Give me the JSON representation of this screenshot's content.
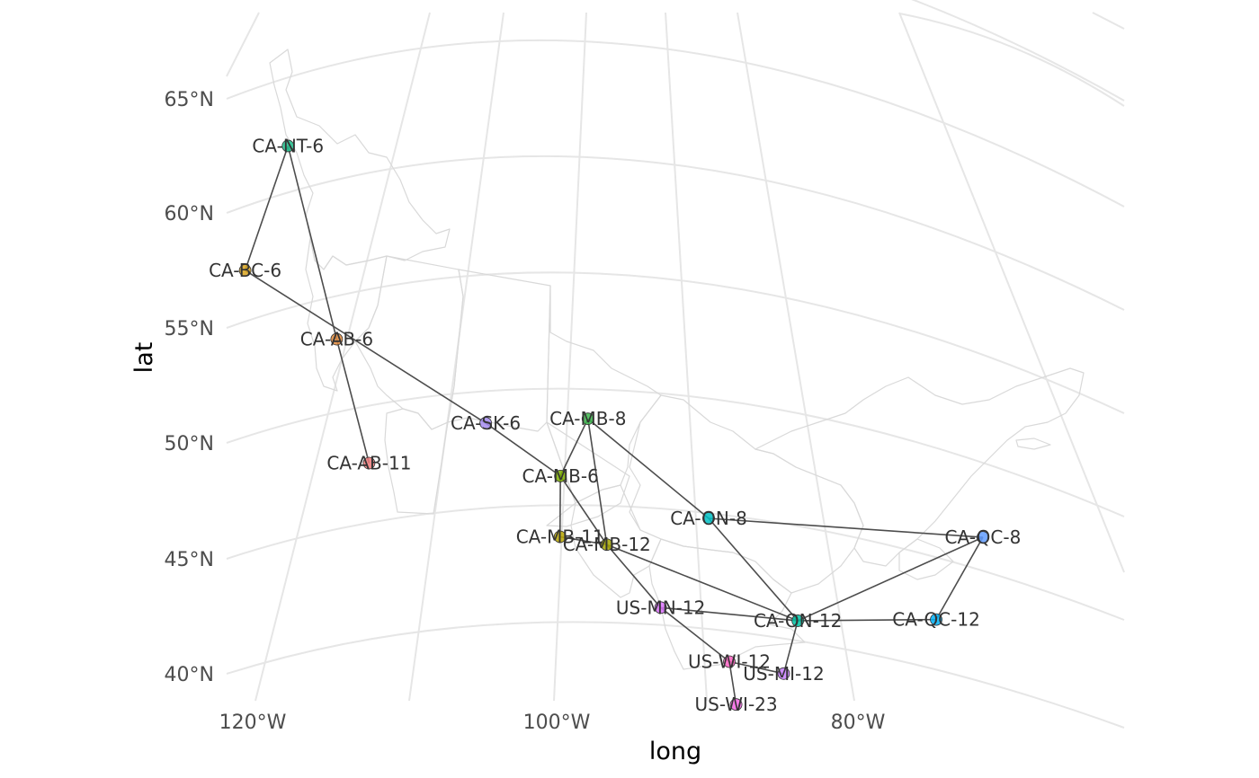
{
  "chart_data": {
    "type": "map-network",
    "title": "",
    "xlabel": "long",
    "ylabel": "lat",
    "x_ticks": [
      "120°W",
      "100°W",
      "80°W"
    ],
    "y_ticks": [
      "40°N",
      "45°N",
      "50°N",
      "55°N",
      "60°N",
      "65°N"
    ],
    "grid": true,
    "nodes": [
      {
        "id": "CA-NT-6",
        "label": "CA-NT-6",
        "lon": -117.5,
        "lat": 61.5,
        "color": "#1dbf8c"
      },
      {
        "id": "CA-BC-6",
        "label": "CA-BC-6",
        "lon": -120.5,
        "lat": 56.0,
        "color": "#d9a41f"
      },
      {
        "id": "CA-AB-6",
        "label": "CA-AB-6",
        "lon": -114.5,
        "lat": 54.0,
        "color": "#e08a3c"
      },
      {
        "id": "CA-AB-11",
        "label": "CA-AB-11",
        "lon": -112.5,
        "lat": 49.2,
        "color": "#f07b7b"
      },
      {
        "id": "CA-SK-6",
        "label": "CA-SK-6",
        "lon": -104.7,
        "lat": 51.9,
        "color": "#a58cf0"
      },
      {
        "id": "CA-MB-8",
        "label": "CA-MB-8",
        "lon": -97.9,
        "lat": 53.0,
        "color": "#3ab44a"
      },
      {
        "id": "CA-MB-6",
        "label": "CA-MB-6",
        "lon": -99.8,
        "lat": 50.4,
        "color": "#7cae00"
      },
      {
        "id": "CA-MB-11",
        "label": "CA-MB-11",
        "lon": -99.9,
        "lat": 47.9,
        "color": "#b8a600"
      },
      {
        "id": "CA-MB-12",
        "label": "CA-MB-12",
        "lon": -96.8,
        "lat": 48.0,
        "color": "#a3a500"
      },
      {
        "id": "CA-ON-8",
        "label": "CA-ON-8",
        "lon": -90.0,
        "lat": 50.0,
        "color": "#00bfc4"
      },
      {
        "id": "CA-ON-12",
        "label": "CA-ON-12",
        "lon": -84.2,
        "lat": 46.6,
        "color": "#00c1a3"
      },
      {
        "id": "CA-QC-8",
        "label": "CA-QC-8",
        "lon": -71.8,
        "lat": 51.7,
        "color": "#619cff"
      },
      {
        "id": "CA-QC-12",
        "label": "CA-QC-12",
        "lon": -75.0,
        "lat": 47.9,
        "color": "#00b0f6"
      },
      {
        "id": "US-MN-12",
        "label": "US-MN-12",
        "lon": -93.3,
        "lat": 45.9,
        "color": "#db72fb"
      },
      {
        "id": "US-WI-12",
        "label": "US-WI-12",
        "lon": -88.8,
        "lat": 44.3,
        "color": "#ff61c3"
      },
      {
        "id": "US-MI-12",
        "label": "US-MI-12",
        "lon": -85.2,
        "lat": 44.3,
        "color": "#c77cff"
      },
      {
        "id": "US-WI-23",
        "label": "US-WI-23",
        "lon": -88.4,
        "lat": 42.6,
        "color": "#f564e3"
      }
    ],
    "edges": [
      [
        "CA-NT-6",
        "CA-BC-6"
      ],
      [
        "CA-NT-6",
        "CA-AB-6"
      ],
      [
        "CA-BC-6",
        "CA-SK-6"
      ],
      [
        "CA-AB-6",
        "CA-AB-11"
      ],
      [
        "CA-SK-6",
        "CA-MB-6"
      ],
      [
        "CA-MB-8",
        "CA-MB-6"
      ],
      [
        "CA-MB-8",
        "CA-MB-12"
      ],
      [
        "CA-MB-8",
        "CA-ON-8"
      ],
      [
        "CA-MB-6",
        "CA-MB-11"
      ],
      [
        "CA-MB-6",
        "CA-MB-12"
      ],
      [
        "CA-MB-11",
        "CA-MB-12"
      ],
      [
        "CA-MB-12",
        "CA-ON-12"
      ],
      [
        "CA-MB-12",
        "US-MN-12"
      ],
      [
        "CA-ON-8",
        "CA-ON-12"
      ],
      [
        "CA-ON-8",
        "CA-QC-8"
      ],
      [
        "CA-ON-12",
        "CA-QC-8"
      ],
      [
        "CA-ON-12",
        "CA-QC-12"
      ],
      [
        "CA-ON-12",
        "US-MN-12"
      ],
      [
        "CA-ON-12",
        "US-MI-12"
      ],
      [
        "CA-QC-8",
        "CA-QC-12"
      ],
      [
        "US-MN-12",
        "US-WI-12"
      ],
      [
        "US-WI-12",
        "US-MI-12"
      ],
      [
        "US-WI-12",
        "US-WI-23"
      ]
    ]
  }
}
